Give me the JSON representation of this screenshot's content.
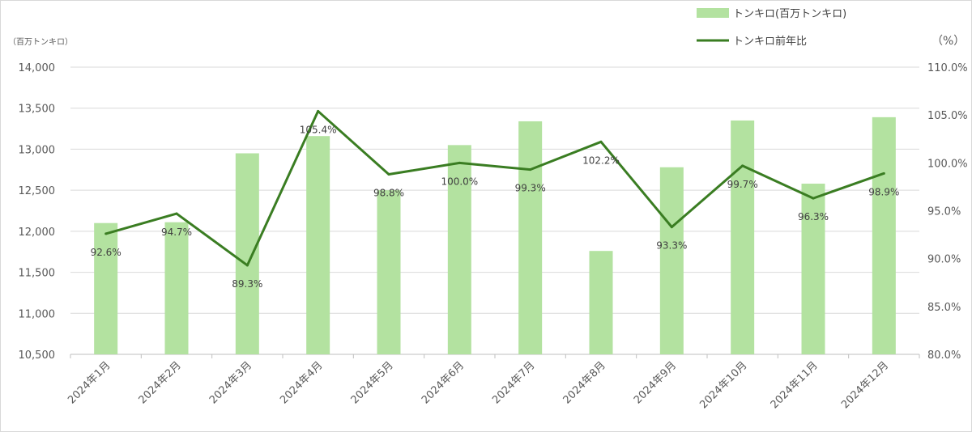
{
  "chart_data": {
    "type": "bar",
    "categories": [
      "2024年1月",
      "2024年2月",
      "2024年3月",
      "2024年4月",
      "2024年5月",
      "2024年6月",
      "2024年7月",
      "2024年8月",
      "2024年9月",
      "2024年10月",
      "2024年11月",
      "2024年12月"
    ],
    "series": [
      {
        "name": "トンキロ(百万トンキロ)",
        "type": "bar",
        "axis": "left",
        "color": "#b3e2a0",
        "values": [
          12100,
          12110,
          12950,
          13160,
          12500,
          13050,
          13340,
          11760,
          12780,
          13350,
          12580,
          13390
        ]
      },
      {
        "name": "トンキロ前年比",
        "type": "line",
        "axis": "right",
        "color": "#3a7d22",
        "values": [
          92.6,
          94.7,
          89.3,
          105.4,
          98.8,
          100.0,
          99.3,
          102.2,
          93.3,
          99.7,
          96.3,
          98.9
        ],
        "labels": [
          "92.6%",
          "94.7%",
          "89.3%",
          "105.4%",
          "98.8%",
          "100.0%",
          "99.3%",
          "102.2%",
          "93.3%",
          "99.7%",
          "96.3%",
          "98.9%"
        ]
      }
    ],
    "y_left": {
      "unit_label": "（百万トンキロ）",
      "ylim": [
        10500,
        14000
      ],
      "ticks": [
        10500,
        11000,
        11500,
        12000,
        12500,
        13000,
        13500,
        14000
      ],
      "tick_labels": [
        "10,500",
        "11,000",
        "11,500",
        "12,000",
        "12,500",
        "13,000",
        "13,500",
        "14,000"
      ]
    },
    "y_right": {
      "unit_label": "（%）",
      "ylim": [
        80,
        110
      ],
      "ticks": [
        80,
        85,
        90,
        95,
        100,
        105,
        110
      ],
      "tick_labels": [
        "80.0%",
        "85.0%",
        "90.0%",
        "95.0%",
        "100.0%",
        "105.0%",
        "110.0%"
      ]
    },
    "grid": true,
    "legend_position": "top-right"
  }
}
